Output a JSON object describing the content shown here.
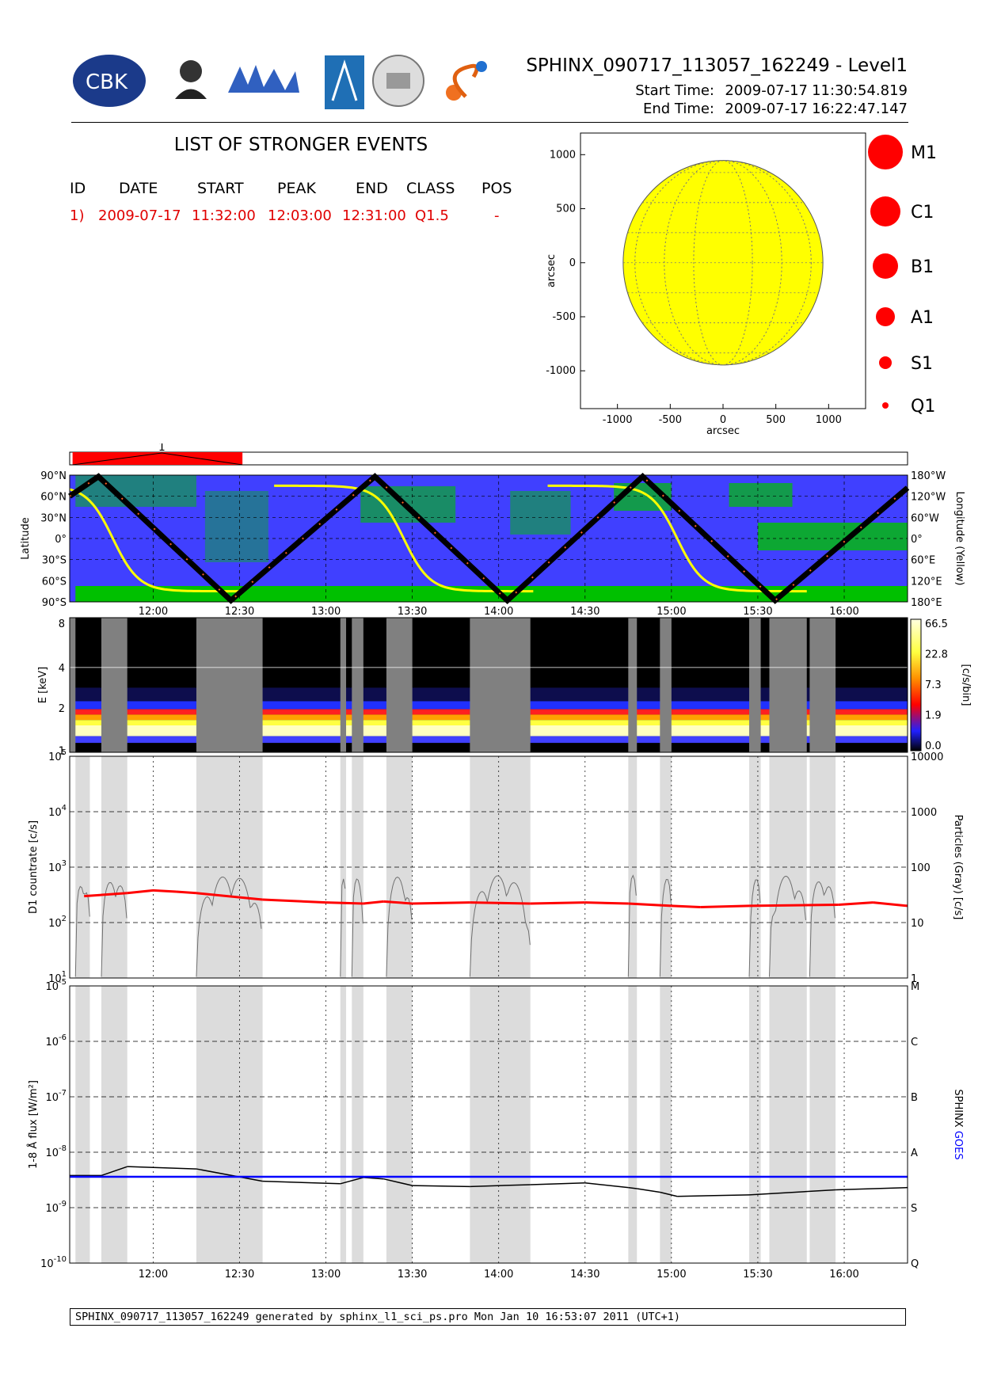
{
  "header": {
    "title": "SPHINX_090717_113057_162249 - Level1",
    "start_label": "Start Time:",
    "start_date": "2009-07-17",
    "start_time": "11:30:54.819",
    "end_label": "End Time:",
    "end_date": "2009-07-17",
    "end_time": "16:22:47.147",
    "logos": [
      "CBK",
      "P.N.Lebedev Physical Institute of the Russian Academy of Science",
      "MIFI",
      "Institute logo",
      "Seal",
      "S logo"
    ]
  },
  "events": {
    "title": "LIST OF STRONGER EVENTS",
    "columns": [
      "ID",
      "DATE",
      "START",
      "PEAK",
      "END",
      "CLASS",
      "POS"
    ],
    "rows": [
      {
        "id": "1)",
        "date": "2009-07-17",
        "start": "11:32:00",
        "peak": "12:03:00",
        "end": "12:31:00",
        "class": "Q1.5",
        "pos": "-"
      }
    ]
  },
  "legend": [
    "M1",
    "C1",
    "B1",
    "A1",
    "S1",
    "Q1"
  ],
  "colors": {
    "event": "#ff0000",
    "sun": "#ffff00",
    "night": "#4040ff",
    "saa": "#00c000",
    "goes": "#0000ff",
    "gray_band": "#dcdcdc"
  },
  "footer": "SPHINX_090717_113057_162249 generated by sphinx_l1_sci_ps.pro Mon Jan 10 16:53:07 2011 (UTC+1)",
  "chart_data": [
    {
      "type": "scatter",
      "title": "",
      "xlabel": "arcsec",
      "ylabel": "arcsec",
      "xlim": [
        -1350,
        1350
      ],
      "ylim": [
        -1350,
        1200
      ],
      "xticks": [
        "-1000",
        "-500",
        "0",
        "500",
        "1000"
      ],
      "yticks": [
        "1000",
        "500",
        "0",
        "-500",
        "-1000"
      ],
      "sun_radius_arcsec": 946,
      "points": []
    },
    {
      "type": "bar",
      "title": "",
      "event_label": "1",
      "event_start": "11:32:00",
      "event_peak": "12:03:00",
      "event_end": "12:31:00"
    },
    {
      "type": "line",
      "title": "",
      "ylabel": "Latitude",
      "y2label": "Longitude (Yellow)",
      "yticks": [
        "90°N",
        "60°N",
        "30°N",
        "0°",
        "30°S",
        "60°S",
        "90°S"
      ],
      "y2ticks": [
        "180°W",
        "120°W",
        "60°W",
        "0°",
        "60°E",
        "120°E",
        "180°E"
      ],
      "xticks": [
        "12:00",
        "12:30",
        "13:00",
        "13:30",
        "14:00",
        "14:30",
        "15:00",
        "15:30",
        "16:00"
      ],
      "latitude_track": [
        [
          "11:31",
          60
        ],
        [
          "11:41",
          88
        ],
        [
          "12:27",
          -88
        ],
        [
          "13:17",
          88
        ],
        [
          "14:03",
          -88
        ],
        [
          "14:50",
          88
        ],
        [
          "15:36",
          -88
        ],
        [
          "16:22",
          72
        ]
      ],
      "longitude_track_breaks": [
        "11:46",
        "13:27",
        "15:02"
      ]
    },
    {
      "type": "heatmap",
      "title": "",
      "ylabel": "E [keV]",
      "colorbar_label": "[c/s/bin]",
      "yticks": [
        "1",
        "2",
        "4",
        "8"
      ],
      "colorbar_ticks": [
        "66.5",
        "22.8",
        "7.3",
        "1.9",
        "0.0"
      ],
      "gaps": [
        [
          "11:31",
          "11:33"
        ],
        [
          "11:42",
          "11:51"
        ],
        [
          "12:15",
          "12:38"
        ],
        [
          "13:05",
          "13:07"
        ],
        [
          "13:09",
          "13:13"
        ],
        [
          "13:21",
          "13:30"
        ],
        [
          "13:50",
          "14:11"
        ],
        [
          "14:45",
          "14:48"
        ],
        [
          "14:56",
          "15:00"
        ],
        [
          "15:27",
          "15:31"
        ],
        [
          "15:34",
          "15:47"
        ],
        [
          "15:48",
          "15:57"
        ]
      ]
    },
    {
      "type": "line",
      "title": "",
      "ylabel": "D1 countrate [c/s]",
      "y2label": "Particles (Gray) [c/s]",
      "ylim": [
        10,
        100000
      ],
      "yscale": "log",
      "yticks": [
        "10^1",
        "10^2",
        "10^3",
        "10^4",
        "10^5"
      ],
      "y2ticks": [
        "1",
        "10",
        "100",
        "1000",
        "10000"
      ],
      "series": [
        {
          "values": [
            [
              "11:36",
              300
            ],
            [
              "11:51",
              340
            ],
            [
              "12:00",
              380
            ],
            [
              "12:08",
              360
            ],
            [
              "12:15",
              340
            ],
            [
              "12:38",
              260
            ],
            [
              "13:00",
              230
            ],
            [
              "13:13",
              220
            ],
            [
              "13:20",
              240
            ],
            [
              "13:30",
              220
            ],
            [
              "13:50",
              230
            ],
            [
              "14:11",
              220
            ],
            [
              "14:30",
              230
            ],
            [
              "14:45",
              220
            ],
            [
              "15:00",
              200
            ],
            [
              "15:10",
              190
            ],
            [
              "15:27",
              200
            ],
            [
              "15:58",
              210
            ],
            [
              "16:10",
              230
            ],
            [
              "16:22",
              200
            ]
          ]
        }
      ]
    },
    {
      "type": "line",
      "title": "",
      "ylabel": "1-8 Å flux [W/m²]",
      "y2label": "SPHINX GOES",
      "ylim": [
        1e-10,
        1e-05
      ],
      "yscale": "log",
      "yticks": [
        "10^-10",
        "10^-9",
        "10^-8",
        "10^-7",
        "10^-6",
        "10^-5"
      ],
      "y2ticks": [
        "Q",
        "S",
        "A",
        "B",
        "C",
        "M"
      ],
      "series": [
        {
          "name": "SPHINX",
          "values": [
            [
              "11:31",
              3.8e-09
            ],
            [
              "11:42",
              3.8e-09
            ],
            [
              "11:51",
              5.5e-09
            ],
            [
              "12:15",
              5e-09
            ],
            [
              "12:38",
              3e-09
            ],
            [
              "13:05",
              2.7e-09
            ],
            [
              "13:13",
              3.5e-09
            ],
            [
              "13:20",
              3.3e-09
            ],
            [
              "13:30",
              2.5e-09
            ],
            [
              "13:50",
              2.4e-09
            ],
            [
              "14:11",
              2.6e-09
            ],
            [
              "14:30",
              2.8e-09
            ],
            [
              "14:45",
              2.3e-09
            ],
            [
              "14:48",
              2.2e-09
            ],
            [
              "14:56",
              1.9e-09
            ],
            [
              "15:02",
              1.6e-09
            ],
            [
              "15:27",
              1.7e-09
            ],
            [
              "15:57",
              2.1e-09
            ],
            [
              "16:22",
              2.3e-09
            ]
          ]
        },
        {
          "name": "GOES",
          "values": [
            [
              "11:31",
              3.6e-09
            ],
            [
              "16:22",
              3.6e-09
            ]
          ]
        }
      ],
      "gaps": [
        [
          "11:33",
          "11:38"
        ],
        [
          "11:42",
          "11:51"
        ],
        [
          "12:15",
          "12:38"
        ],
        [
          "13:05",
          "13:07"
        ],
        [
          "13:09",
          "13:13"
        ],
        [
          "13:21",
          "13:30"
        ],
        [
          "13:50",
          "14:11"
        ],
        [
          "14:45",
          "14:48"
        ],
        [
          "14:56",
          "15:00"
        ],
        [
          "15:27",
          "15:31"
        ],
        [
          "15:34",
          "15:47"
        ],
        [
          "15:48",
          "15:57"
        ]
      ]
    }
  ]
}
